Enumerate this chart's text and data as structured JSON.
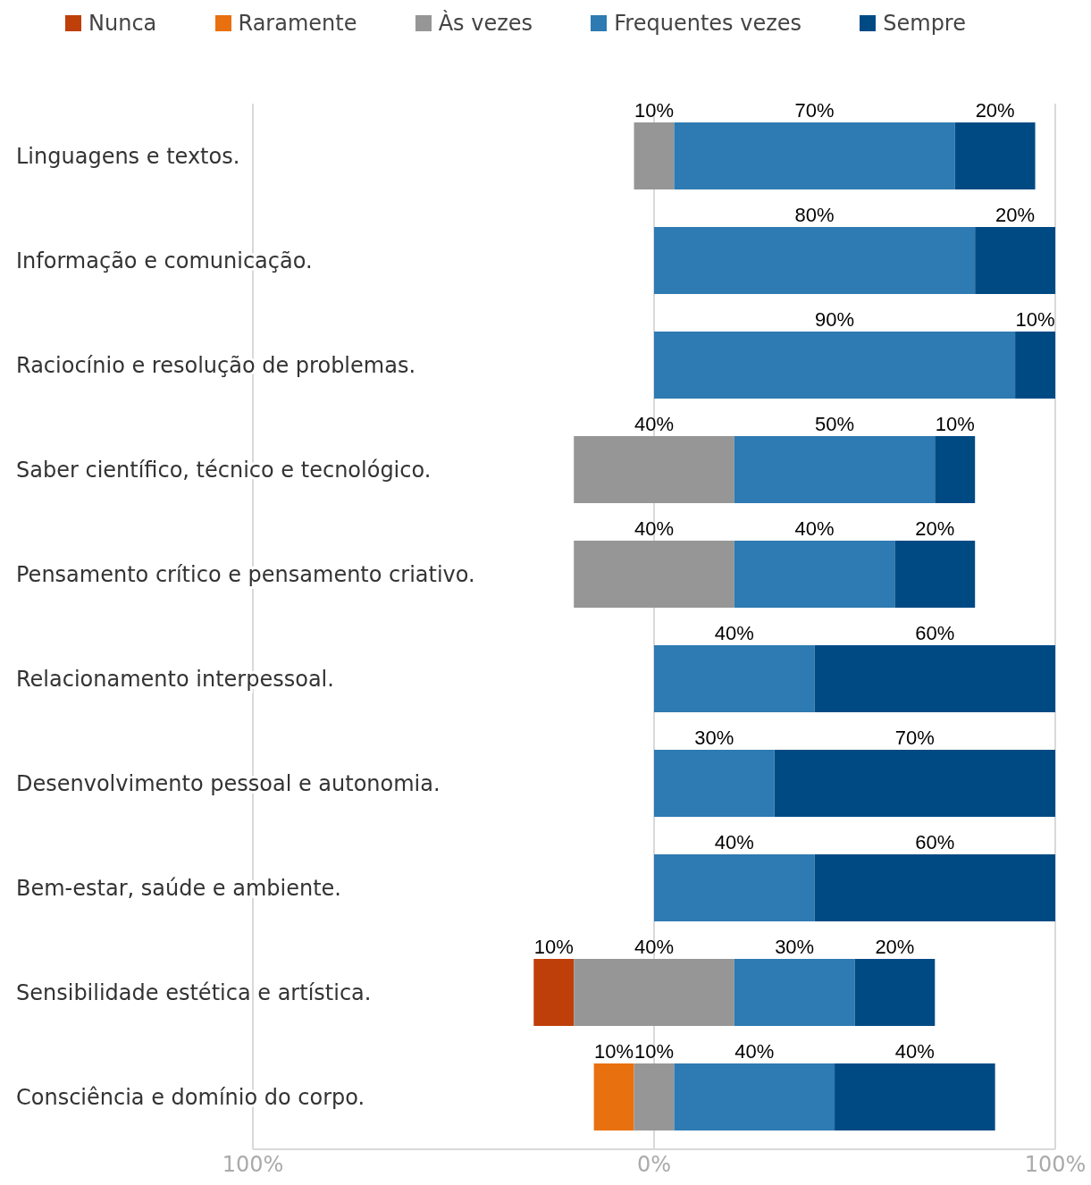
{
  "chart_data": {
    "type": "bar",
    "orientation": "horizontal",
    "categories": [
      "Linguagens e textos.",
      "Informação e comunicação.",
      "Raciocínio e resolução de problemas.",
      "Saber científico, técnico e tecnológico.",
      "Pensamento crítico e pensamento criativo.",
      "Relacionamento interpessoal.",
      "Desenvolvimento pessoal e autonomia.",
      "Bem-estar, saúde e ambiente.",
      "Sensibilidade estética e artística.",
      "Consciência e domínio do corpo."
    ],
    "series": [
      {
        "name": "Nunca",
        "color": "#bf3f0a",
        "values": [
          null,
          null,
          null,
          null,
          null,
          null,
          null,
          null,
          10,
          null
        ],
        "base": [
          null,
          null,
          null,
          null,
          null,
          null,
          null,
          null,
          -30,
          null
        ],
        "value_labels": [
          null,
          null,
          null,
          null,
          null,
          null,
          null,
          null,
          "10%",
          null
        ]
      },
      {
        "name": "Raramente",
        "color": "#e8700e",
        "values": [
          null,
          null,
          null,
          null,
          null,
          null,
          null,
          null,
          null,
          10
        ],
        "base": [
          null,
          null,
          null,
          null,
          null,
          null,
          null,
          null,
          null,
          -15
        ],
        "value_labels": [
          null,
          null,
          null,
          null,
          null,
          null,
          null,
          null,
          null,
          "10%"
        ]
      },
      {
        "name": "Às vezes",
        "color": "#969696",
        "values": [
          10,
          null,
          null,
          40,
          40,
          null,
          null,
          null,
          40,
          10
        ],
        "base": [
          -5,
          null,
          null,
          -20,
          -20,
          null,
          null,
          null,
          -20,
          -5
        ],
        "value_labels": [
          "10%",
          null,
          null,
          "40%",
          "40%",
          null,
          null,
          null,
          "40%",
          "10%"
        ]
      },
      {
        "name": "Frequentes vezes",
        "color": "#2e7ab2",
        "values": [
          70,
          80,
          90,
          50,
          40,
          40,
          30,
          40,
          30,
          40
        ],
        "base": [
          5,
          0,
          0,
          20,
          20,
          0,
          0,
          0,
          20,
          5
        ],
        "value_labels": [
          "70%",
          "80%",
          "90%",
          "50%",
          "40%",
          "40%",
          "30%",
          "40%",
          "30%",
          "40%"
        ]
      },
      {
        "name": "Sempre",
        "color": "#004a84",
        "values": [
          20,
          20,
          10,
          10,
          20,
          60,
          70,
          60,
          20,
          40
        ],
        "base": [
          75,
          80,
          90,
          70,
          60,
          40,
          30,
          40,
          50,
          45
        ],
        "value_labels": [
          "20%",
          "20%",
          "10%",
          "10%",
          "20%",
          "60%",
          "70%",
          "60%",
          "20%",
          "40%"
        ]
      }
    ],
    "xlim": [
      -100,
      100
    ],
    "xticks": [
      {
        "value": -100,
        "label": "100%"
      },
      {
        "value": 0,
        "label": "0%"
      },
      {
        "value": 100,
        "label": "100%"
      }
    ],
    "grid": "x",
    "legend": "top"
  }
}
